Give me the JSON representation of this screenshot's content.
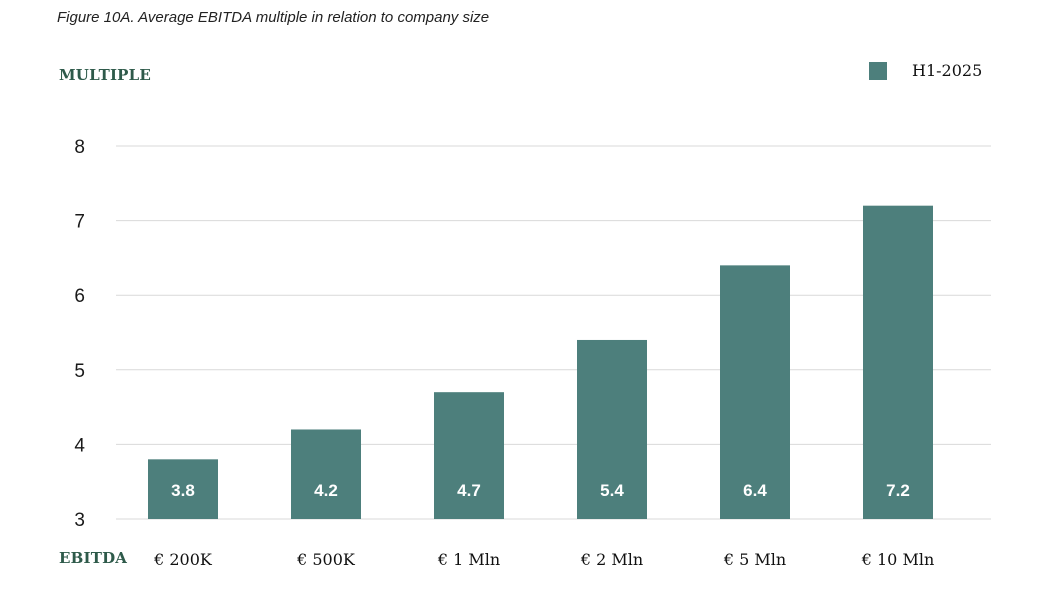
{
  "caption": "Figure 10A. Average EBITDA multiple in relation to company size",
  "colors": {
    "bar": "#4d7f7c",
    "grid": "#d9d9d9",
    "axis_label": "#2e5a4a"
  },
  "chart_data": {
    "type": "bar",
    "ylabel": "MULTIPLE",
    "xlabel": "EBITDA",
    "categories": [
      "€ 200K",
      "€ 500K",
      "€ 1 Mln",
      "€ 2 Mln",
      "€ 5 Mln",
      "€ 10 Mln"
    ],
    "series": [
      {
        "name": "H1-2025",
        "values": [
          3.8,
          4.2,
          4.7,
          5.4,
          6.4,
          7.2
        ]
      }
    ],
    "ylim": [
      3,
      8
    ],
    "yticks": [
      3,
      4,
      5,
      6,
      7,
      8
    ],
    "grid": true,
    "legend": "top-right",
    "data_labels": true
  }
}
